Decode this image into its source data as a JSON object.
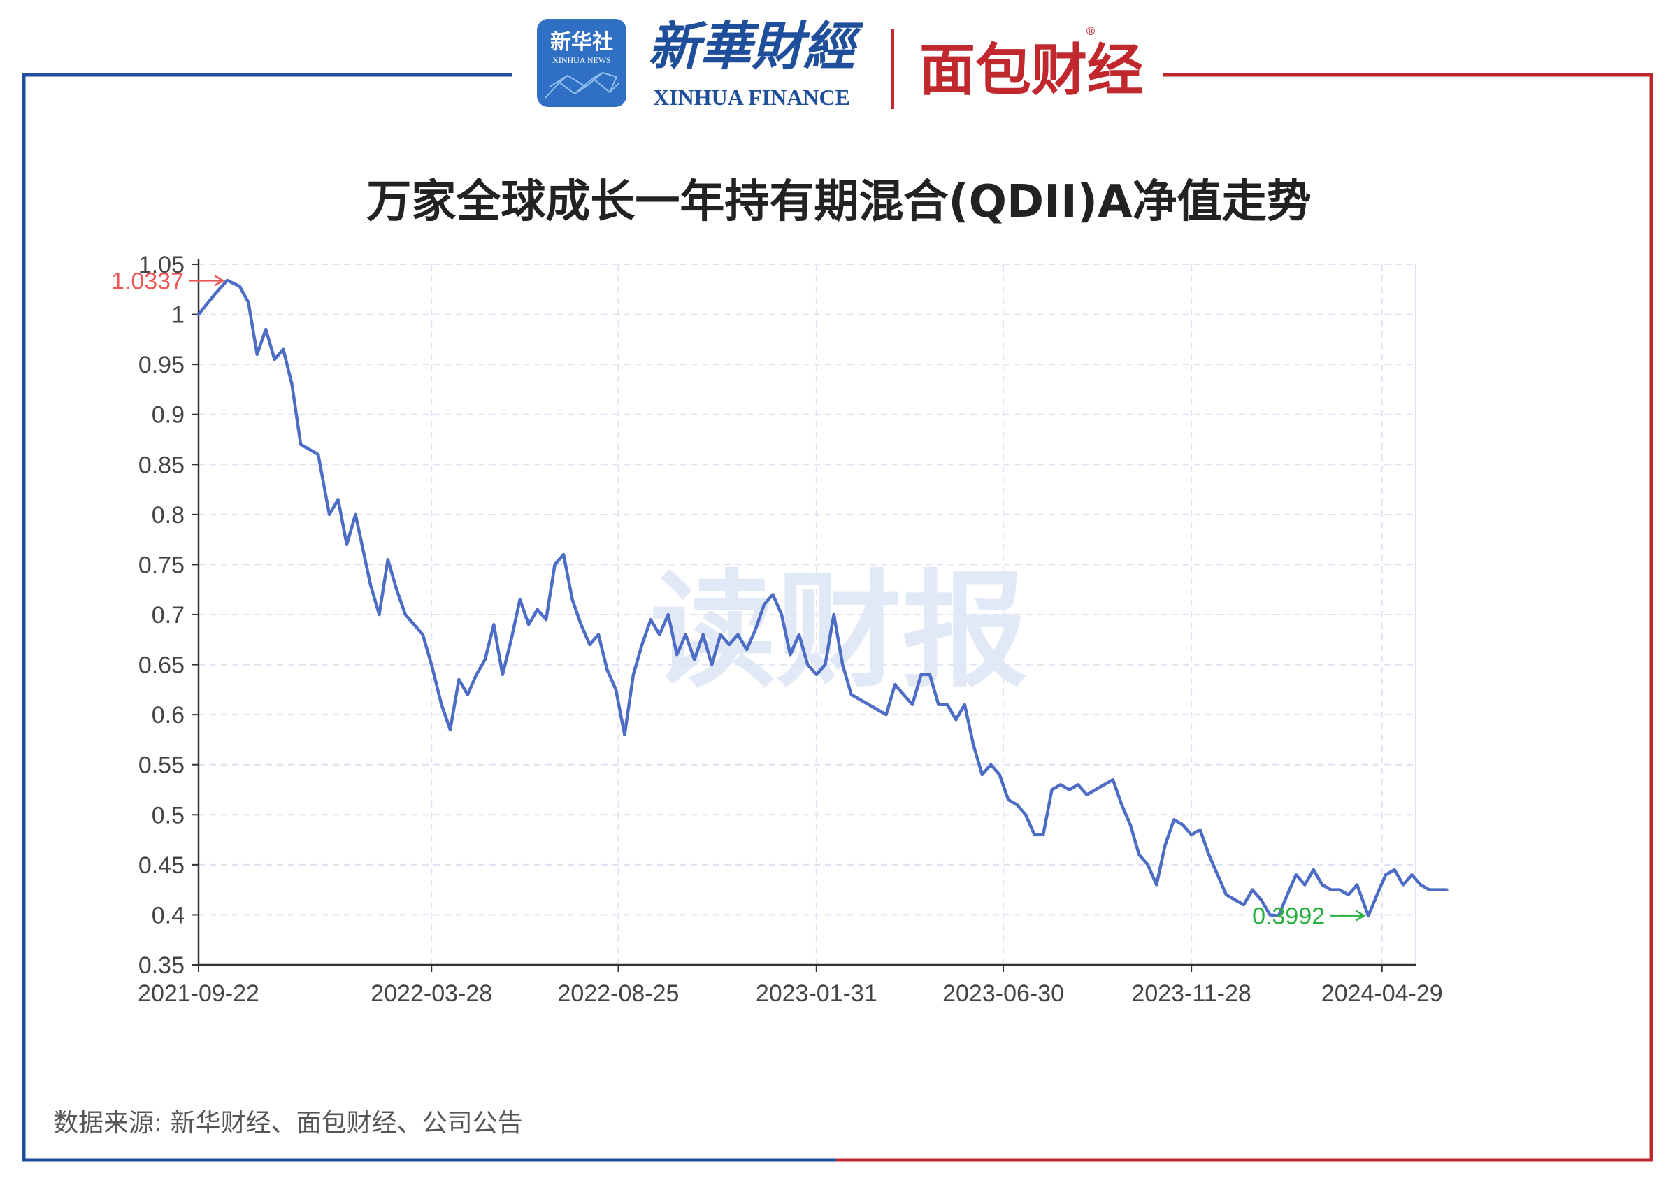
{
  "header": {
    "xinhua_badge": "新华社",
    "xinhua_badge_sub": "XINHUA NEWS",
    "brand_cn": "新華財經",
    "brand_en": "XINHUA FINANCE",
    "partner_logo": "面包财经",
    "registered_mark": "®"
  },
  "watermark": "读财报",
  "source_note": "数据来源: 新华财经、面包财经、公司公告",
  "colors": {
    "frame_left": "#1f4e9a",
    "frame_right": "#c0282d",
    "line": "#4d6cc4",
    "max_annotation": "#ee5555",
    "min_annotation": "#27b03e",
    "grid": "#dde3f2"
  },
  "chart_data": {
    "type": "line",
    "title": "万家全球成长一年持有期混合(QDII)A净值走势",
    "xlabel": "",
    "ylabel": "",
    "ylim": [
      0.35,
      1.05
    ],
    "yticks": [
      "0.35",
      "0.4",
      "0.45",
      "0.5",
      "0.55",
      "0.6",
      "0.65",
      "0.7",
      "0.75",
      "0.8",
      "0.85",
      "0.9",
      "0.95",
      "1",
      "1.05"
    ],
    "xticks": [
      "2021-09-22",
      "2022-03-28",
      "2022-08-25",
      "2023-01-31",
      "2023-06-30",
      "2023-11-28",
      "2024-04-29"
    ],
    "grid": true,
    "legend": "none",
    "annotations": [
      {
        "label": "1.0337",
        "kind": "max",
        "value": 1.0337,
        "date": "2021-10-15"
      },
      {
        "label": "0.3992",
        "kind": "min",
        "value": 0.3992,
        "date": "2024-04-18"
      }
    ],
    "series": [
      {
        "x": [
          "2021-09-22",
          "2021-10-05",
          "2021-10-15",
          "2021-10-25",
          "2021-11-01",
          "2021-11-08",
          "2021-11-15",
          "2021-11-22",
          "2021-11-29",
          "2021-12-06",
          "2021-12-13",
          "2021-12-20",
          "2021-12-27",
          "2022-01-05",
          "2022-01-12",
          "2022-01-19",
          "2022-01-26",
          "2022-02-07",
          "2022-02-14",
          "2022-02-21",
          "2022-02-28",
          "2022-03-07",
          "2022-03-14",
          "2022-03-21",
          "2022-03-28",
          "2022-04-05",
          "2022-04-12",
          "2022-04-19",
          "2022-04-26",
          "2022-05-03",
          "2022-05-10",
          "2022-05-17",
          "2022-05-24",
          "2022-05-31",
          "2022-06-07",
          "2022-06-14",
          "2022-06-21",
          "2022-06-28",
          "2022-07-05",
          "2022-07-12",
          "2022-07-19",
          "2022-07-26",
          "2022-08-02",
          "2022-08-09",
          "2022-08-16",
          "2022-08-23",
          "2022-08-30",
          "2022-09-06",
          "2022-09-13",
          "2022-09-20",
          "2022-09-27",
          "2022-10-04",
          "2022-10-11",
          "2022-10-18",
          "2022-10-25",
          "2022-11-01",
          "2022-11-08",
          "2022-11-15",
          "2022-11-22",
          "2022-11-29",
          "2022-12-06",
          "2022-12-13",
          "2022-12-20",
          "2022-12-27",
          "2023-01-03",
          "2023-01-10",
          "2023-01-17",
          "2023-01-24",
          "2023-01-31",
          "2023-02-07",
          "2023-02-14",
          "2023-02-21",
          "2023-02-28",
          "2023-03-07",
          "2023-03-14",
          "2023-03-21",
          "2023-03-28",
          "2023-04-04",
          "2023-04-11",
          "2023-04-18",
          "2023-04-25",
          "2023-05-02",
          "2023-05-09",
          "2023-05-16",
          "2023-05-23",
          "2023-05-30",
          "2023-06-06",
          "2023-06-13",
          "2023-06-20",
          "2023-06-27",
          "2023-07-04",
          "2023-07-11",
          "2023-07-18",
          "2023-07-25",
          "2023-08-01",
          "2023-08-08",
          "2023-08-15",
          "2023-08-22",
          "2023-08-29",
          "2023-09-05",
          "2023-09-12",
          "2023-09-19",
          "2023-09-26",
          "2023-10-03",
          "2023-10-10",
          "2023-10-17",
          "2023-10-24",
          "2023-10-31",
          "2023-11-07",
          "2023-11-14",
          "2023-11-21",
          "2023-11-28",
          "2023-12-05",
          "2023-12-12",
          "2023-12-19",
          "2023-12-26",
          "2024-01-02",
          "2024-01-09",
          "2024-01-16",
          "2024-01-23",
          "2024-01-30",
          "2024-02-06",
          "2024-02-13",
          "2024-02-20",
          "2024-02-27",
          "2024-03-05",
          "2024-03-12",
          "2024-03-19",
          "2024-03-26",
          "2024-04-02",
          "2024-04-09",
          "2024-04-18",
          "2024-04-25",
          "2024-05-02",
          "2024-05-09",
          "2024-05-16",
          "2024-05-23",
          "2024-05-30",
          "2024-06-06",
          "2024-06-13",
          "2024-06-20"
        ],
        "y": [
          1.0,
          1.02,
          1.034,
          1.028,
          1.012,
          0.96,
          0.985,
          0.955,
          0.965,
          0.93,
          0.87,
          0.865,
          0.86,
          0.8,
          0.815,
          0.77,
          0.8,
          0.73,
          0.7,
          0.755,
          0.725,
          0.7,
          0.69,
          0.68,
          0.65,
          0.61,
          0.585,
          0.635,
          0.62,
          0.64,
          0.655,
          0.69,
          0.64,
          0.675,
          0.715,
          0.69,
          0.705,
          0.695,
          0.75,
          0.76,
          0.715,
          0.69,
          0.67,
          0.68,
          0.645,
          0.625,
          0.58,
          0.64,
          0.67,
          0.695,
          0.68,
          0.7,
          0.66,
          0.68,
          0.655,
          0.68,
          0.65,
          0.68,
          0.67,
          0.68,
          0.665,
          0.685,
          0.71,
          0.72,
          0.7,
          0.66,
          0.68,
          0.65,
          0.64,
          0.65,
          0.7,
          0.65,
          0.62,
          0.615,
          0.61,
          0.605,
          0.6,
          0.63,
          0.62,
          0.61,
          0.64,
          0.64,
          0.61,
          0.61,
          0.595,
          0.61,
          0.57,
          0.54,
          0.55,
          0.54,
          0.515,
          0.51,
          0.5,
          0.48,
          0.48,
          0.525,
          0.53,
          0.525,
          0.53,
          0.52,
          0.525,
          0.53,
          0.535,
          0.51,
          0.49,
          0.46,
          0.45,
          0.43,
          0.47,
          0.495,
          0.49,
          0.48,
          0.485,
          0.46,
          0.44,
          0.42,
          0.415,
          0.41,
          0.425,
          0.415,
          0.4,
          0.399,
          0.42,
          0.44,
          0.43,
          0.445,
          0.43,
          0.425,
          0.425,
          0.42,
          0.43,
          0.399,
          0.42,
          0.44,
          0.445,
          0.43,
          0.44,
          0.43,
          0.425,
          0.425,
          0.425
        ]
      }
    ]
  }
}
